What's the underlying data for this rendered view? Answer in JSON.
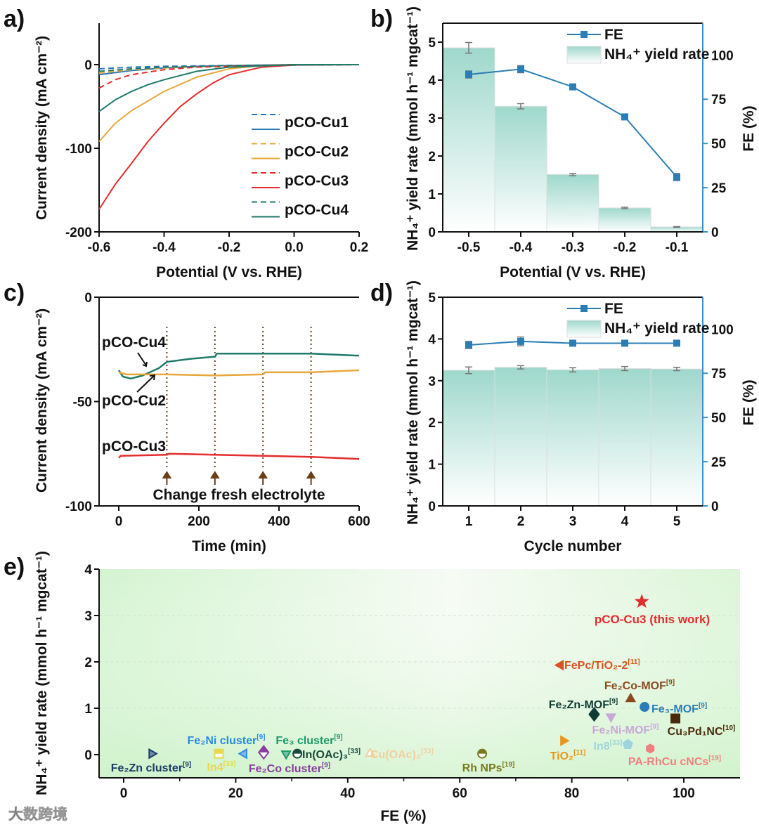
{
  "panel_labels": [
    "a)",
    "b)",
    "c)",
    "d)",
    "e)"
  ],
  "watermark": "大数跨境",
  "colors": {
    "cu1": "#2a7ab8",
    "cu2": "#e8a73a",
    "cu3": "#e52b2b",
    "cu4": "#1e7a6a",
    "fe": "#2a7db5",
    "bar": "#9fd8cc",
    "annot": "#6b3e14"
  },
  "chart_data": [
    {
      "id": "a",
      "type": "line",
      "xlabel": "Potential (V vs. RHE)",
      "ylabel": "Current density (mA cm⁻²)",
      "xlim": [
        -0.6,
        0.2
      ],
      "ylim": [
        -200,
        50
      ],
      "xticks": [
        "-0.6",
        "-0.4",
        "-0.2",
        "0.0",
        "0.2"
      ],
      "xtick_values": [
        -0.6,
        -0.4,
        -0.2,
        0,
        0.2
      ],
      "yticks": [
        "0",
        "-100",
        "-200"
      ],
      "ytick_values": [
        0,
        -100,
        -200
      ],
      "legend": [
        "pCO-Cu1",
        "pCO-Cu2",
        "pCO-Cu3",
        "pCO-Cu4"
      ],
      "legend_position": "center-right",
      "series": [
        {
          "name": "pCO-Cu1",
          "color_key": "cu1",
          "dash": [
            [
              -0.6,
              -5
            ],
            [
              -0.5,
              -3
            ],
            [
              -0.4,
              -2
            ],
            [
              -0.2,
              -1
            ],
            [
              0.2,
              0
            ]
          ],
          "solid": [
            [
              -0.6,
              -12
            ],
            [
              -0.5,
              -7
            ],
            [
              -0.4,
              -4
            ],
            [
              -0.3,
              -2
            ],
            [
              -0.2,
              -1
            ],
            [
              0,
              0
            ],
            [
              0.2,
              0
            ]
          ]
        },
        {
          "name": "pCO-Cu2",
          "color_key": "cu2",
          "dash": [
            [
              -0.6,
              -10
            ],
            [
              -0.5,
              -6
            ],
            [
              -0.4,
              -4
            ],
            [
              -0.2,
              -1
            ],
            [
              0.2,
              0
            ]
          ],
          "solid": [
            [
              -0.6,
              -92
            ],
            [
              -0.55,
              -70
            ],
            [
              -0.5,
              -55
            ],
            [
              -0.4,
              -32
            ],
            [
              -0.3,
              -15
            ],
            [
              -0.2,
              -5
            ],
            [
              -0.1,
              -1
            ],
            [
              0,
              0
            ],
            [
              0.2,
              0
            ]
          ]
        },
        {
          "name": "pCO-Cu3",
          "color_key": "cu3",
          "dash": [
            [
              -0.6,
              -28
            ],
            [
              -0.55,
              -18
            ],
            [
              -0.5,
              -12
            ],
            [
              -0.4,
              -6
            ],
            [
              -0.3,
              -3
            ],
            [
              -0.2,
              -2
            ],
            [
              0,
              0
            ],
            [
              0.2,
              0
            ]
          ],
          "solid": [
            [
              -0.6,
              -173
            ],
            [
              -0.55,
              -143
            ],
            [
              -0.5,
              -118
            ],
            [
              -0.45,
              -92
            ],
            [
              -0.4,
              -70
            ],
            [
              -0.35,
              -50
            ],
            [
              -0.3,
              -35
            ],
            [
              -0.25,
              -22
            ],
            [
              -0.2,
              -12
            ],
            [
              -0.1,
              -3
            ],
            [
              0,
              -0.5
            ],
            [
              0.2,
              0
            ]
          ]
        },
        {
          "name": "pCO-Cu4",
          "color_key": "cu4",
          "dash": [
            [
              -0.6,
              -8
            ],
            [
              -0.5,
              -5
            ],
            [
              -0.4,
              -3
            ],
            [
              -0.2,
              -1
            ],
            [
              0.2,
              0
            ]
          ],
          "solid": [
            [
              -0.6,
              -56
            ],
            [
              -0.55,
              -42
            ],
            [
              -0.5,
              -32
            ],
            [
              -0.45,
              -24
            ],
            [
              -0.4,
              -18
            ],
            [
              -0.3,
              -8
            ],
            [
              -0.2,
              -3
            ],
            [
              0,
              0
            ],
            [
              0.2,
              0
            ]
          ]
        }
      ]
    },
    {
      "id": "b",
      "type": "bar",
      "xlabel": "Potential (V vs. RHE)",
      "ylabel": "NH₄⁺ yield rate (mmol h⁻¹ mgcat⁻¹)",
      "y2label": "FE (%)",
      "categories": [
        "-0.5",
        "-0.4",
        "-0.3",
        "-0.2",
        "-0.1"
      ],
      "ylim": [
        0,
        5.5
      ],
      "y2lim": [
        0,
        118
      ],
      "yticks": [
        "0",
        "1",
        "2",
        "3",
        "4",
        "5"
      ],
      "y2ticks": [
        "0",
        "25",
        "50",
        "75",
        "100"
      ],
      "legend": [
        "FE",
        "NH₄⁺ yield rate"
      ],
      "legend_position": "top-right",
      "series": [
        {
          "name": "NH₄⁺ yield rate",
          "type": "bar",
          "values": [
            4.85,
            3.31,
            1.51,
            0.63,
            0.13
          ],
          "errors": [
            0.14,
            0.07,
            0.03,
            0.02,
            0.01
          ]
        },
        {
          "name": "FE",
          "type": "line",
          "axis": "right",
          "values": [
            89,
            92,
            82,
            65,
            31
          ],
          "errors": [
            2,
            2,
            1,
            1,
            2
          ]
        }
      ]
    },
    {
      "id": "c",
      "type": "line",
      "xlabel": "Time (min)",
      "ylabel": "Current density (mA cm⁻²)",
      "xlim": [
        -50,
        600
      ],
      "ylim": [
        -100,
        0
      ],
      "xticks": [
        "0",
        "200",
        "400",
        "600"
      ],
      "xtick_values": [
        0,
        200,
        400,
        600
      ],
      "yticks": [
        "0",
        "-50",
        "-100"
      ],
      "ytick_values": [
        0,
        -50,
        -100
      ],
      "annotation": "Change fresh electrolyte",
      "change_times": [
        120,
        240,
        360,
        480
      ],
      "series": [
        {
          "name": "pCO-Cu4",
          "color_key": "cu4",
          "points": [
            [
              0,
              -35
            ],
            [
              10,
              -38
            ],
            [
              30,
              -39
            ],
            [
              60,
              -37.5
            ],
            [
              100,
              -34
            ],
            [
              120,
              -31
            ],
            [
              180,
              -29.5
            ],
            [
              240,
              -28.5
            ],
            [
              245,
              -27
            ],
            [
              360,
              -27
            ],
            [
              480,
              -27
            ],
            [
              600,
              -28
            ]
          ]
        },
        {
          "name": "pCO-Cu2",
          "color_key": "cu2",
          "points": [
            [
              0,
              -36
            ],
            [
              20,
              -37
            ],
            [
              120,
              -37
            ],
            [
              240,
              -37.5
            ],
            [
              360,
              -37
            ],
            [
              365,
              -36
            ],
            [
              480,
              -36
            ],
            [
              600,
              -35
            ]
          ]
        },
        {
          "name": "pCO-Cu3",
          "color_key": "cu3",
          "points": [
            [
              0,
              -77
            ],
            [
              5,
              -76
            ],
            [
              120,
              -75.5
            ],
            [
              125,
              -75
            ],
            [
              240,
              -75.5
            ],
            [
              360,
              -76
            ],
            [
              480,
              -76.5
            ],
            [
              600,
              -77.5
            ]
          ]
        }
      ]
    },
    {
      "id": "d",
      "type": "bar",
      "xlabel": "Cycle number",
      "ylabel": "NH₄⁺ yield rate (mmol h⁻¹ mgcat⁻¹)",
      "y2label": "FE (%)",
      "categories": [
        "1",
        "2",
        "3",
        "4",
        "5"
      ],
      "ylim": [
        0,
        5
      ],
      "y2lim": [
        0,
        118
      ],
      "yticks": [
        "0",
        "1",
        "2",
        "3",
        "4",
        "5"
      ],
      "y2ticks": [
        "0",
        "25",
        "50",
        "75",
        "100"
      ],
      "legend": [
        "FE",
        "NH₄⁺ yield rate"
      ],
      "legend_position": "top-right",
      "series": [
        {
          "name": "NH₄⁺ yield rate",
          "type": "bar",
          "values": [
            3.25,
            3.32,
            3.26,
            3.29,
            3.28
          ],
          "errors": [
            0.08,
            0.04,
            0.05,
            0.05,
            0.04
          ]
        },
        {
          "name": "FE",
          "type": "line",
          "axis": "right",
          "values": [
            91,
            93,
            92,
            92,
            92
          ],
          "errors": [
            2,
            2.5,
            1.5,
            1,
            1
          ]
        }
      ]
    },
    {
      "id": "e",
      "type": "scatter",
      "xlabel": "FE (%)",
      "ylabel": "NH₄⁺ yield rate (mmol h⁻¹ mgcat⁻¹)",
      "xlim": [
        -4.4,
        110
      ],
      "ylim": [
        -0.5,
        4
      ],
      "xticks": [
        "0",
        "20",
        "40",
        "60",
        "80",
        "100"
      ],
      "xtick_values": [
        0,
        20,
        40,
        60,
        80,
        100
      ],
      "yticks": [
        "0",
        "1",
        "2",
        "3",
        "4"
      ],
      "ytick_values": [
        0,
        1,
        2,
        3,
        4
      ],
      "points": [
        {
          "label": "pCO-Cu3 (this work)",
          "ref": "",
          "x": 92.5,
          "y": 3.3,
          "marker": "star",
          "color": "#e52b2b"
        },
        {
          "label": "FePc/TiO₂-2",
          "ref": "[11]",
          "x": 78,
          "y": 1.93,
          "marker": "tri-left",
          "color": "#d9531e"
        },
        {
          "label": "Fe₂Co-MOF",
          "ref": "[9]",
          "x": 90.5,
          "y": 1.2,
          "marker": "tri-up",
          "color": "#8b4a1e"
        },
        {
          "label": "Fe₃-MOF",
          "ref": "[9]",
          "x": 93,
          "y": 1.03,
          "marker": "circle",
          "color": "#2a7db5"
        },
        {
          "label": "Fe₂Zn-MOF",
          "ref": "[9]",
          "x": 84,
          "y": 0.87,
          "marker": "diamond",
          "color": "#0d3b33"
        },
        {
          "label": "Fe₂Ni-MOF",
          "ref": "[9]",
          "x": 87,
          "y": 0.82,
          "marker": "tri-down",
          "color": "#c9a8d8"
        },
        {
          "label": "Cu₃Pd₁NC",
          "ref": "[10]",
          "x": 98.5,
          "y": 0.78,
          "marker": "square",
          "color": "#4a2a0c"
        },
        {
          "label": "TiO₂",
          "ref": "[11]",
          "x": 78.5,
          "y": 0.3,
          "marker": "tri-right",
          "color": "#e8961e"
        },
        {
          "label": "In8",
          "ref": "[33]",
          "x": 90,
          "y": 0.22,
          "marker": "pentagon",
          "color": "#9fd4dc"
        },
        {
          "label": "PA-RhCu cNCs",
          "ref": "[19]",
          "x": 94,
          "y": 0.13,
          "marker": "hexagon",
          "color": "#f08080"
        },
        {
          "label": "Rh NPs",
          "ref": "[19]",
          "x": 64,
          "y": 0.02,
          "marker": "half-circle",
          "color": "#7a7a1e"
        },
        {
          "label": "Cu(OAc)₂",
          "ref": "[33]",
          "x": 44,
          "y": 0.02,
          "marker": "tri-up-open",
          "color": "#f2cfa0"
        },
        {
          "label": "In(OAc)₃",
          "ref": "[33]",
          "x": 31,
          "y": 0.02,
          "marker": "half-circle",
          "color": "#1a4a3a"
        },
        {
          "label": "Fe₃ cluster",
          "ref": "[9]",
          "x": 29,
          "y": 0.02,
          "marker": "tri-down-half",
          "color": "#1a9a6a"
        },
        {
          "label": "Fe₂Co cluster",
          "ref": "[9]",
          "x": 25,
          "y": 0.05,
          "marker": "half-diamond",
          "color": "#8a3aa0"
        },
        {
          "label": "Fe₂Ni cluster",
          "ref": "[9]",
          "x": 21.5,
          "y": 0.02,
          "marker": "tri-left-half",
          "color": "#2a8ae0"
        },
        {
          "label": "In4",
          "ref": "[33]",
          "x": 17,
          "y": 0.02,
          "marker": "half-square",
          "color": "#e8d84a"
        },
        {
          "label": "Fe₂Zn cluster",
          "ref": "[9]",
          "x": 5,
          "y": 0.02,
          "marker": "tri-right-half",
          "color": "#1a3a6a"
        }
      ]
    }
  ]
}
